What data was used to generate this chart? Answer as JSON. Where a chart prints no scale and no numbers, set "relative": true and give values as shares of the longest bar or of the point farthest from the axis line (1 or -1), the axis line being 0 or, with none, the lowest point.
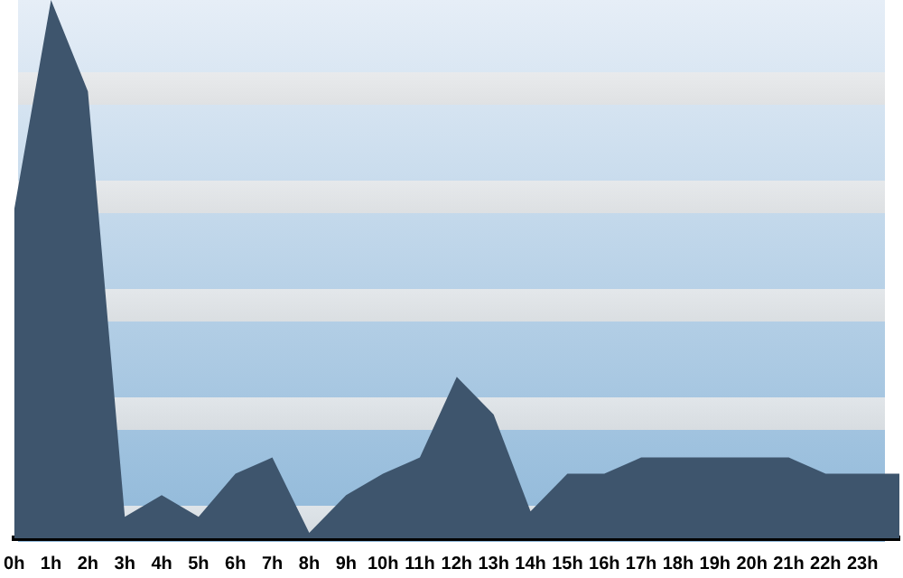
{
  "chart_data": {
    "type": "area",
    "relative": true,
    "categories": [
      "0h",
      "1h",
      "2h",
      "3h",
      "4h",
      "5h",
      "6h",
      "7h",
      "8h",
      "9h",
      "10h",
      "11h",
      "12h",
      "13h",
      "14h",
      "15h",
      "16h",
      "17h",
      "18h",
      "19h",
      "20h",
      "21h",
      "22h",
      "23h",
      null
    ],
    "series": [
      {
        "color": "#3e556d",
        "values": [
          0.61,
          1,
          0.83,
          0.04,
          0.08,
          0.04,
          0.12,
          0.15,
          0.01,
          0.08,
          0.12,
          0.15,
          0.3,
          0.23,
          0.05,
          0.12,
          0.12,
          0.15,
          0.15,
          0.15,
          0.15,
          0.15,
          0.12,
          0.12,
          0.12
        ]
      }
    ],
    "grid": false,
    "legend": false
  }
}
